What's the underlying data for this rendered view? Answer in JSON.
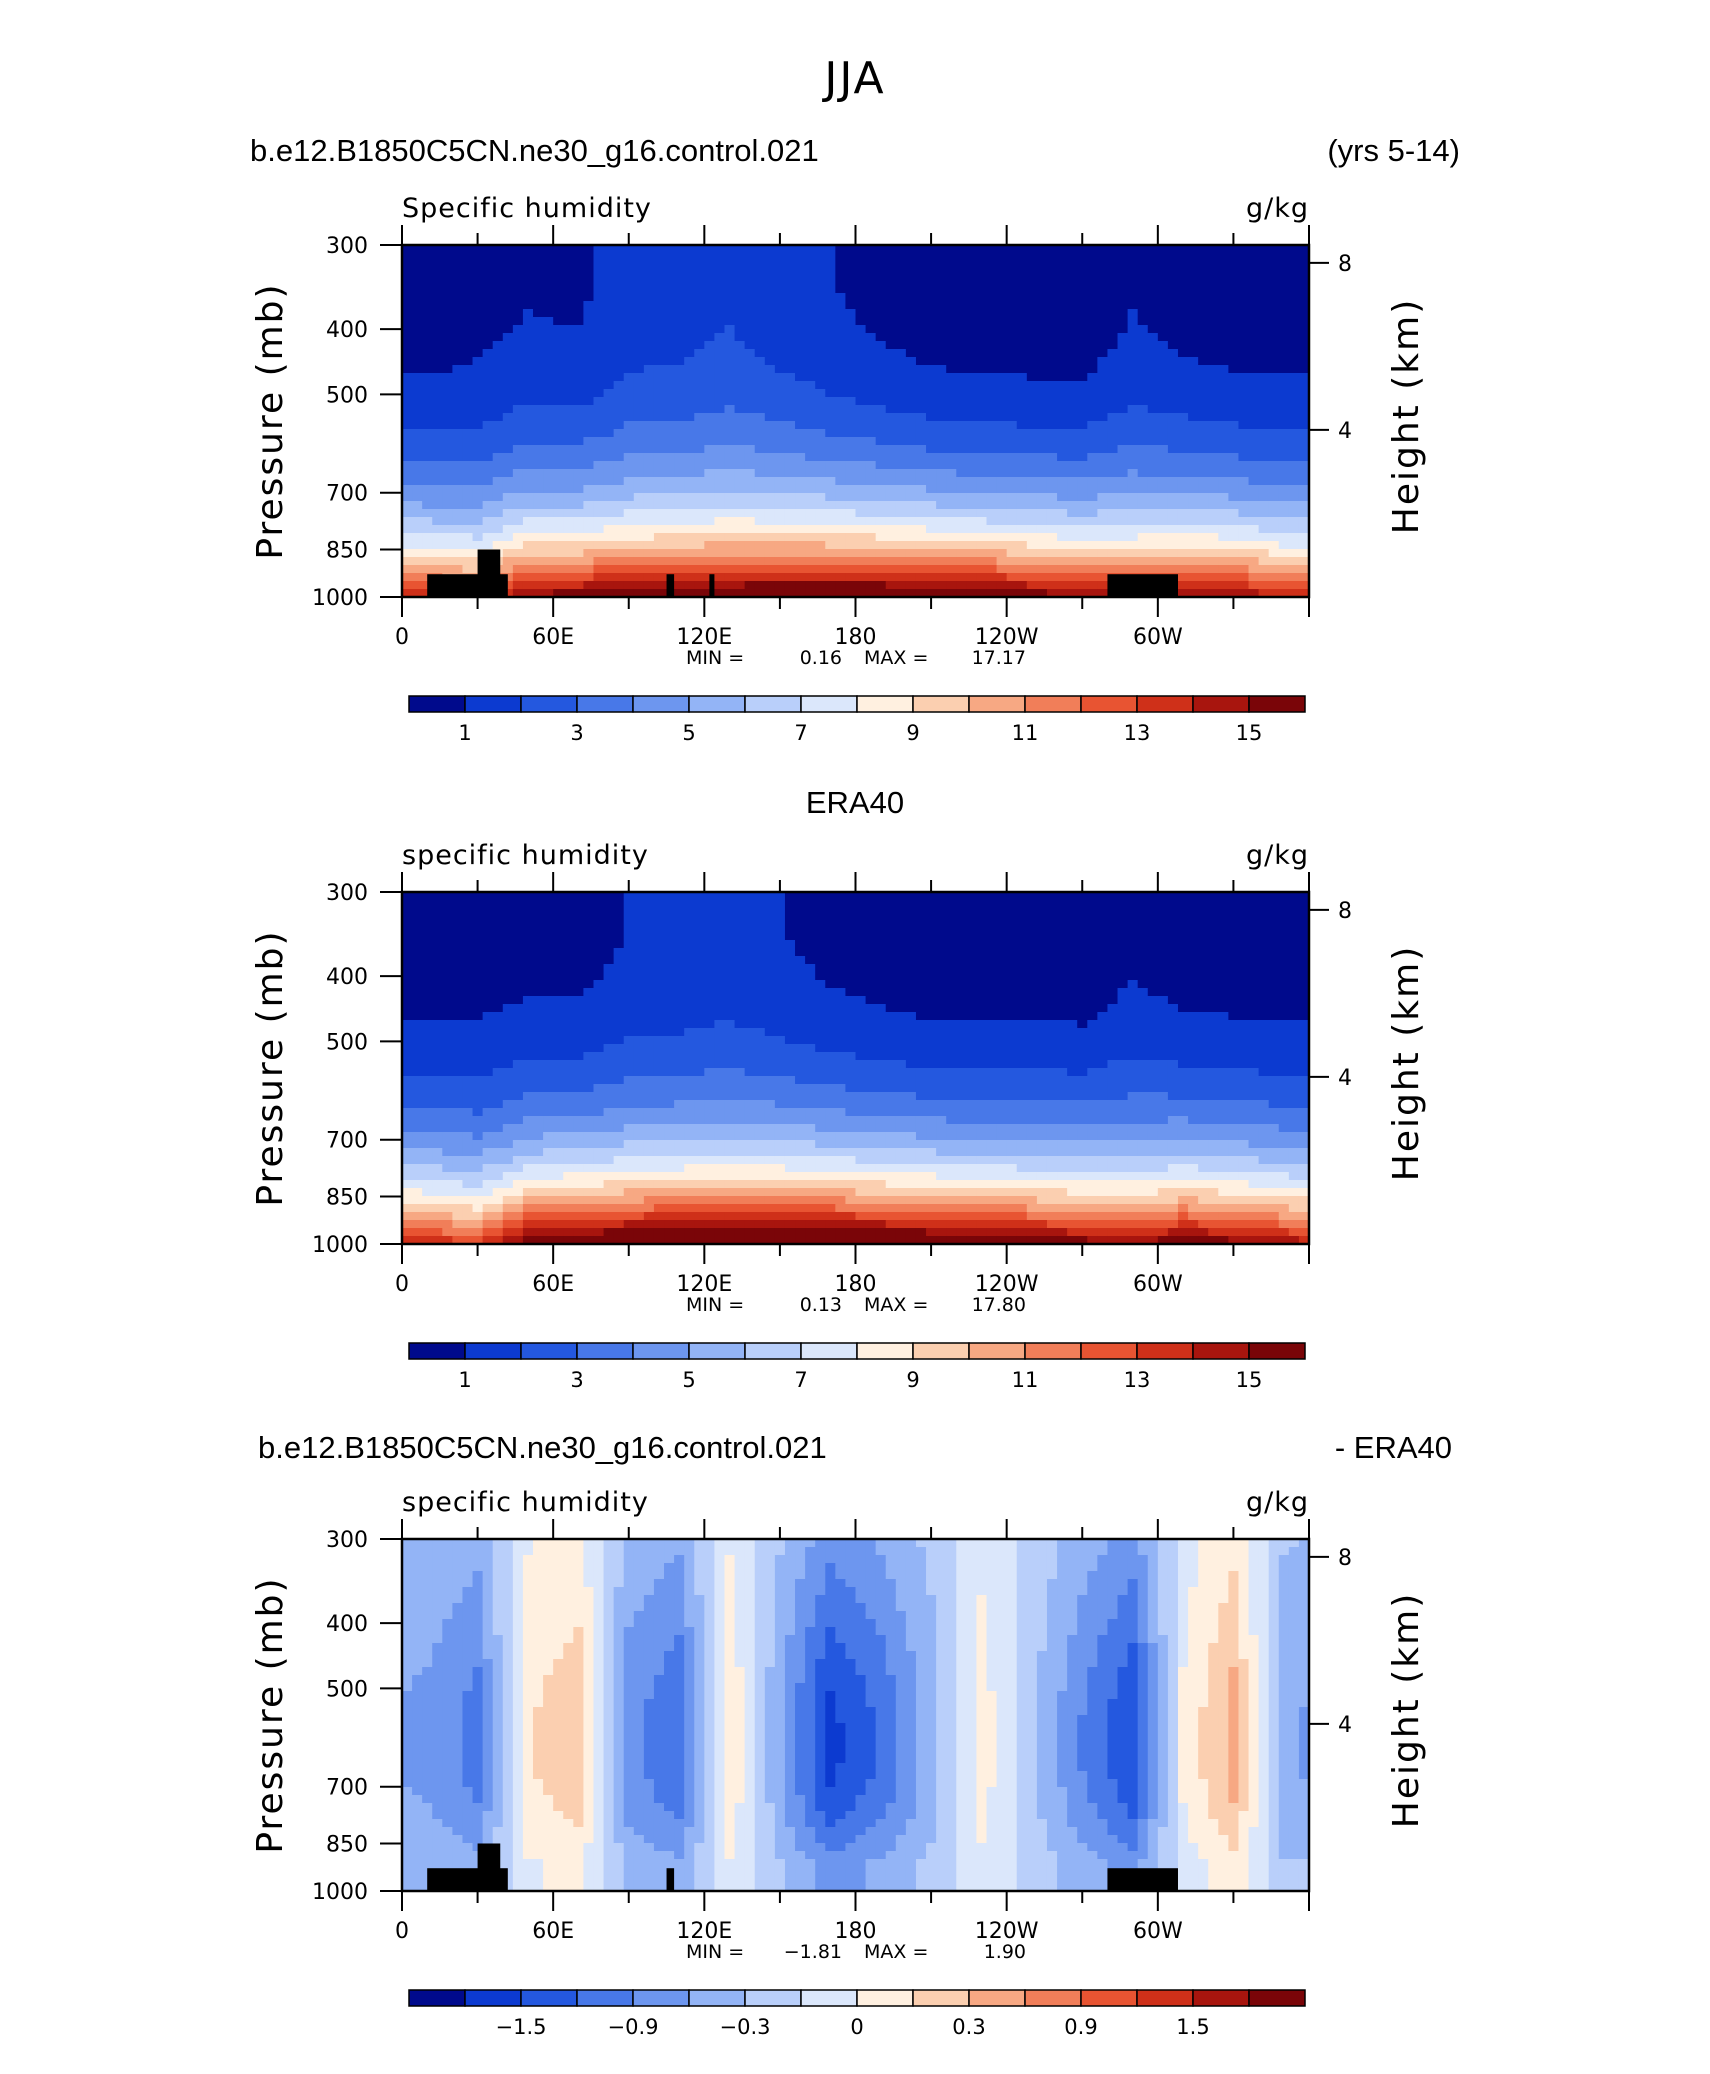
{
  "figure": {
    "title": "JJA",
    "model_label": "b.e12.B1850C5CN.ne30_g16.control.021",
    "years_label": "(yrs 5-14)",
    "obs_label": "ERA40",
    "diff_model_label": "b.e12.B1850C5CN.ne30_g16.control.021",
    "diff_suffix_label": "- ERA40"
  },
  "axes": {
    "ylabel_left": "Pressure (mb)",
    "ylabel_right": "Height (km)",
    "pressure_ticks": [
      "300",
      "400",
      "500",
      "700",
      "850",
      "1000"
    ],
    "height_ticks": [
      "8",
      "4"
    ],
    "lon_ticks": [
      "0",
      "60E",
      "120E",
      "180",
      "120W",
      "60W"
    ]
  },
  "colors": {
    "land_mask": "#000000",
    "positive_levels": [
      "#fff0e0",
      "#fbcfb0",
      "#f7a883",
      "#f17e59",
      "#e85432",
      "#cf3019",
      "#a8150e",
      "#7a0508"
    ],
    "negative_levels": [
      "#dbe7fb",
      "#b9cffa",
      "#93b4f6",
      "#6d96ef",
      "#4878e8",
      "#2458df",
      "#0c3ad0",
      "#000a8c"
    ]
  },
  "chart_data": [
    {
      "type": "heatmap",
      "title": "Specific humidity",
      "units": "g/kg",
      "xlabel": "",
      "ylabel": "Pressure (mb)",
      "ylim": [
        1000,
        300
      ],
      "x_range": [
        0,
        360
      ],
      "min_text": "MIN =",
      "min_value": "0.16",
      "max_text": "MAX =",
      "max_value": "17.17",
      "colorbar_labels": [
        "1",
        "3",
        "5",
        "7",
        "9",
        "11",
        "13",
        "15"
      ],
      "colorbar_levels": [
        0.5,
        1,
        2,
        3,
        4,
        5,
        6,
        7,
        8,
        9,
        10,
        11,
        12,
        13,
        14,
        15,
        16
      ],
      "surface_q": [
        13.8,
        13.2,
        15.5,
        15.8,
        16.2,
        16.5,
        16.8,
        17.0,
        17.1,
        17.0,
        16.8,
        16.4,
        15.8,
        15.2,
        14.8,
        15.6,
        15.2,
        14.0
      ],
      "low_q": [
        0.4,
        0.6,
        0.9,
        0.8,
        1.4,
        1.5,
        1.8,
        1.4,
        1.0,
        0.7,
        0.4,
        0.3,
        0.3,
        0.3,
        0.9,
        0.6,
        0.4,
        0.4
      ]
    },
    {
      "type": "heatmap",
      "title": "specific humidity",
      "units": "g/kg",
      "xlabel": "",
      "ylabel": "Pressure (mb)",
      "ylim": [
        1000,
        300
      ],
      "x_range": [
        0,
        360
      ],
      "min_text": "MIN =",
      "min_value": "0.13",
      "max_text": "MAX =",
      "max_value": "17.80",
      "colorbar_labels": [
        "1",
        "3",
        "5",
        "7",
        "9",
        "11",
        "13",
        "15"
      ],
      "colorbar_levels": [
        0.5,
        1,
        2,
        3,
        4,
        5,
        6,
        7,
        8,
        9,
        10,
        11,
        12,
        13,
        14,
        15,
        16
      ],
      "surface_q": [
        14.0,
        13.0,
        16.2,
        16.8,
        17.2,
        17.5,
        17.7,
        17.8,
        17.6,
        17.3,
        17.0,
        16.6,
        16.2,
        15.8,
        15.0,
        16.2,
        15.6,
        14.8
      ],
      "low_q": [
        0.4,
        0.5,
        0.6,
        0.6,
        1.0,
        1.1,
        1.3,
        1.0,
        0.7,
        0.5,
        0.3,
        0.3,
        0.3,
        0.3,
        0.8,
        0.5,
        0.4,
        0.4
      ]
    },
    {
      "type": "heatmap",
      "title": "specific humidity",
      "units": "g/kg",
      "xlabel": "",
      "ylabel": "Pressure (mb)",
      "ylim": [
        1000,
        300
      ],
      "x_range": [
        0,
        360
      ],
      "min_text": "MIN =",
      "min_value": "−1.81",
      "max_text": "MAX =",
      "max_value": "1.90",
      "colorbar_labels": [
        "−1.5",
        "−0.9",
        "−0.3",
        "0",
        "0.3",
        "0.9",
        "1.5"
      ],
      "colorbar_levels": [
        -2.1,
        -1.8,
        -1.5,
        -1.2,
        -0.9,
        -0.6,
        -0.3,
        0,
        0.3,
        0.6,
        0.9,
        1.2,
        1.5,
        1.8,
        2.1
      ],
      "diff_profile": [
        -0.6,
        -0.9,
        0.5,
        0.7,
        -0.7,
        -1.0,
        0.5,
        -0.5,
        -1.4,
        -1.0,
        -0.4,
        0.4,
        -0.2,
        -0.8,
        -1.3,
        0.3,
        0.9,
        -0.5
      ]
    }
  ]
}
